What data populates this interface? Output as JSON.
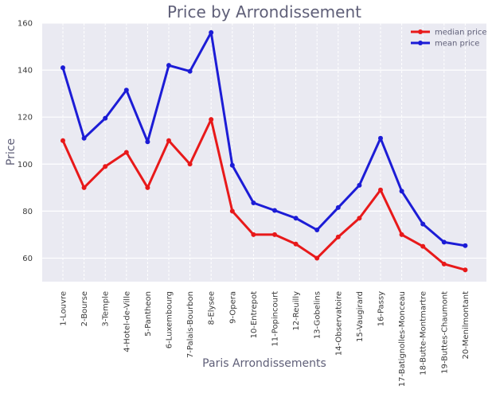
{
  "chart_data": {
    "type": "line",
    "title": "Price by Arrondissement",
    "xlabel": "Paris Arrondissements",
    "ylabel": "Price",
    "categories": [
      "1-Louvre",
      "2-Bourse",
      "3-Temple",
      "4-Hotel-de-Ville",
      "5-Pantheon",
      "6-Luxembourg",
      "7-Palais-Bourbon",
      "8-Elysee",
      "9-Opera",
      "10-Entrepot",
      "11-Popincourt",
      "12-Reuilly",
      "13-Gobelins",
      "14-Observatoire",
      "15-Vaugirard",
      "16-Passy",
      "17-Batignolles-Monceau",
      "18-Butte-Montmartre",
      "19-Buttes-Chaumont",
      "20-Menilmontant"
    ],
    "series": [
      {
        "name": "median price",
        "color": "#e8191a",
        "values": [
          110,
          90,
          99,
          105,
          90,
          110,
          100,
          119,
          80,
          70,
          70,
          66,
          60,
          69,
          77,
          89,
          70,
          65,
          57.5,
          55
        ]
      },
      {
        "name": "mean price",
        "color": "#1c1cd6",
        "values": [
          141,
          111,
          119.5,
          131.5,
          109.5,
          142,
          139.5,
          156,
          99.5,
          83.5,
          80.3,
          77,
          72,
          81.5,
          91,
          111,
          88.5,
          74.5,
          66.8,
          65.3
        ]
      }
    ],
    "ylim": [
      50,
      160
    ],
    "yticks": [
      60,
      80,
      100,
      120,
      140,
      160
    ],
    "grid": true,
    "legend_position": "top-right"
  }
}
